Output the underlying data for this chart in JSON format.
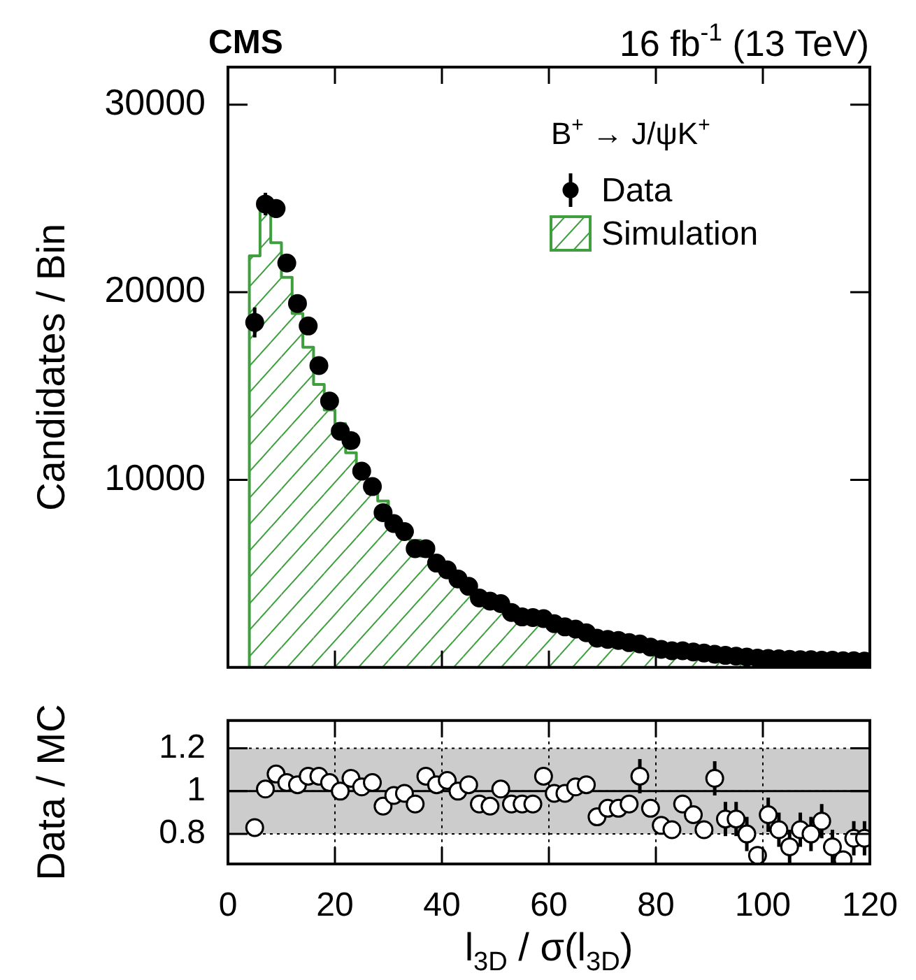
{
  "chart_data": [
    {
      "type": "histogram",
      "title": "CMS",
      "subtitle": "16 fb$^{-1}$ (13 TeV)",
      "ylabel": "Candidates / Bin",
      "legend_title": "B$^{+}$ → J/ψK$^{+}$",
      "legend": "top right",
      "marker": "circle",
      "tick_labels": "y",
      "bins": [
        4,
        6,
        8,
        10,
        12,
        14,
        16,
        18,
        20,
        22,
        24,
        26,
        28,
        30,
        32,
        34,
        36,
        38,
        40,
        42,
        44,
        46,
        48,
        50,
        52,
        54,
        56,
        58,
        60,
        62,
        64,
        66,
        68,
        70,
        72,
        74,
        76,
        78,
        80,
        82,
        84,
        86,
        88,
        90,
        92,
        94,
        96,
        98,
        100,
        102,
        104,
        106,
        108,
        110,
        112,
        114,
        116,
        118,
        120
      ],
      "xlim": [
        0,
        120
      ],
      "xticks": [
        0,
        20,
        40,
        60,
        80,
        100,
        120
      ],
      "ylim": [
        0,
        32000
      ],
      "yticks": [
        10000,
        20000,
        30000
      ],
      "series": [
        {
          "type": "scatter",
          "name": "Data",
          "color": "#000000",
          "x": [
            5,
            7,
            9,
            11,
            13,
            15,
            17,
            19,
            21,
            23,
            25,
            27,
            29,
            31,
            33,
            35,
            37,
            39,
            41,
            43,
            45,
            47,
            49,
            51,
            53,
            55,
            57,
            59,
            61,
            63,
            65,
            67,
            69,
            71,
            73,
            75,
            77,
            79,
            81,
            83,
            85,
            87,
            89,
            91,
            93,
            95,
            97,
            99,
            101,
            103,
            105,
            107,
            109,
            111,
            113,
            115,
            117,
            119
          ],
          "values": [
            18390,
            24700,
            24460,
            21560,
            19400,
            18200,
            16090,
            14200,
            12590,
            12090,
            10460,
            9640,
            8250,
            7670,
            7240,
            6330,
            6330,
            5560,
            5200,
            4720,
            4320,
            3700,
            3530,
            3400,
            2930,
            2690,
            2660,
            2600,
            2330,
            2160,
            2040,
            1850,
            1560,
            1490,
            1440,
            1320,
            1250,
            1080,
            960,
            890,
            890,
            820,
            770,
            700,
            640,
            600,
            550,
            500,
            480,
            460,
            430,
            410,
            410,
            380,
            380,
            360,
            360,
            340
          ],
          "errors": [
            800,
            600,
            500,
            350,
            null,
            null,
            null,
            null,
            null,
            null,
            null,
            null,
            null,
            null,
            null,
            null,
            null,
            null,
            null,
            null,
            null,
            null,
            null,
            null,
            null,
            null,
            null,
            null,
            null,
            null,
            null,
            null,
            null,
            null,
            null,
            null,
            null,
            null,
            null,
            null,
            null,
            null,
            null,
            null,
            null,
            null,
            null,
            null,
            null,
            null,
            null,
            null,
            null,
            null,
            null,
            null,
            null,
            null
          ]
        },
        {
          "type": "histogram",
          "name": "Simulation",
          "color": "#3f9f3f",
          "values": [
            21940,
            24600,
            22640,
            20790,
            18870,
            17070,
            15080,
            13720,
            13000,
            11440,
            10250,
            9280,
            8870,
            7840,
            7310,
            6770,
            5930,
            5410,
            4950,
            4720,
            4200,
            3940,
            3800,
            3370,
            3130,
            2880,
            2850,
            2430,
            2340,
            2180,
            2010,
            1800,
            1770,
            1620,
            1570,
            1400,
            1170,
            1170,
            1150,
            1090,
            950,
            930,
            940,
            660,
            720,
            690,
            660,
            630,
            600,
            570,
            550,
            520,
            490,
            470,
            450,
            430,
            410,
            390
          ]
        }
      ]
    },
    {
      "type": "scatter",
      "xlabel": "l$_{3D}$ / σ(l$_{3D}$)",
      "ylabel": "Data / MC",
      "marker": "circle",
      "color": "#000000",
      "grid": true,
      "xlim": [
        0,
        120
      ],
      "xticks": [
        0,
        20,
        40,
        60,
        80,
        100,
        120
      ],
      "ylim": [
        0.66,
        1.33
      ],
      "yticks": [
        0.8,
        1,
        1.2
      ],
      "bands": [
        {
          "axis": "y",
          "from": 0.8,
          "to": 1.2,
          "color": "#cccccc"
        }
      ],
      "ref_lines": [
        {
          "axis": "y",
          "value": 1,
          "color": "#000000"
        }
      ],
      "x": [
        5,
        7,
        9,
        11,
        13,
        15,
        17,
        19,
        21,
        23,
        25,
        27,
        29,
        31,
        33,
        35,
        37,
        39,
        41,
        43,
        45,
        47,
        49,
        51,
        53,
        55,
        57,
        59,
        61,
        63,
        65,
        67,
        69,
        71,
        73,
        75,
        77,
        79,
        81,
        83,
        85,
        87,
        89,
        91,
        93,
        95,
        97,
        99,
        101,
        103,
        105,
        107,
        109,
        111,
        113,
        115,
        117,
        119
      ],
      "values": [
        0.83,
        1.01,
        1.08,
        1.04,
        1.03,
        1.07,
        1.07,
        1.04,
        1.0,
        1.06,
        1.02,
        1.04,
        0.93,
        0.98,
        0.99,
        0.94,
        1.07,
        1.03,
        1.05,
        1.0,
        1.03,
        0.94,
        0.93,
        1.01,
        0.94,
        0.94,
        0.94,
        1.07,
        0.99,
        0.99,
        1.02,
        1.03,
        0.88,
        0.92,
        0.92,
        0.94,
        1.07,
        0.92,
        0.84,
        0.82,
        0.94,
        0.89,
        0.82,
        1.06,
        0.87,
        0.87,
        0.8,
        0.7,
        0.89,
        0.82,
        0.74,
        0.82,
        0.8,
        0.86,
        0.74,
        0.68,
        0.78,
        0.78
      ],
      "errors": [
        0.03,
        0.02,
        0.02,
        0.02,
        0.02,
        0.02,
        0.02,
        0.02,
        0.02,
        0.02,
        0.02,
        0.02,
        0.02,
        0.02,
        0.02,
        0.02,
        0.02,
        0.02,
        0.02,
        0.02,
        0.02,
        0.02,
        0.02,
        0.03,
        0.03,
        0.03,
        0.03,
        0.03,
        0.03,
        0.03,
        0.03,
        0.03,
        0.04,
        0.04,
        0.04,
        0.04,
        0.08,
        0.04,
        0.04,
        0.04,
        0.04,
        0.04,
        0.04,
        0.08,
        0.08,
        0.08,
        0.08,
        0.03,
        0.08,
        0.08,
        0.08,
        0.08,
        0.08,
        0.08,
        0.08,
        0.02,
        0.08,
        0.08
      ]
    }
  ]
}
